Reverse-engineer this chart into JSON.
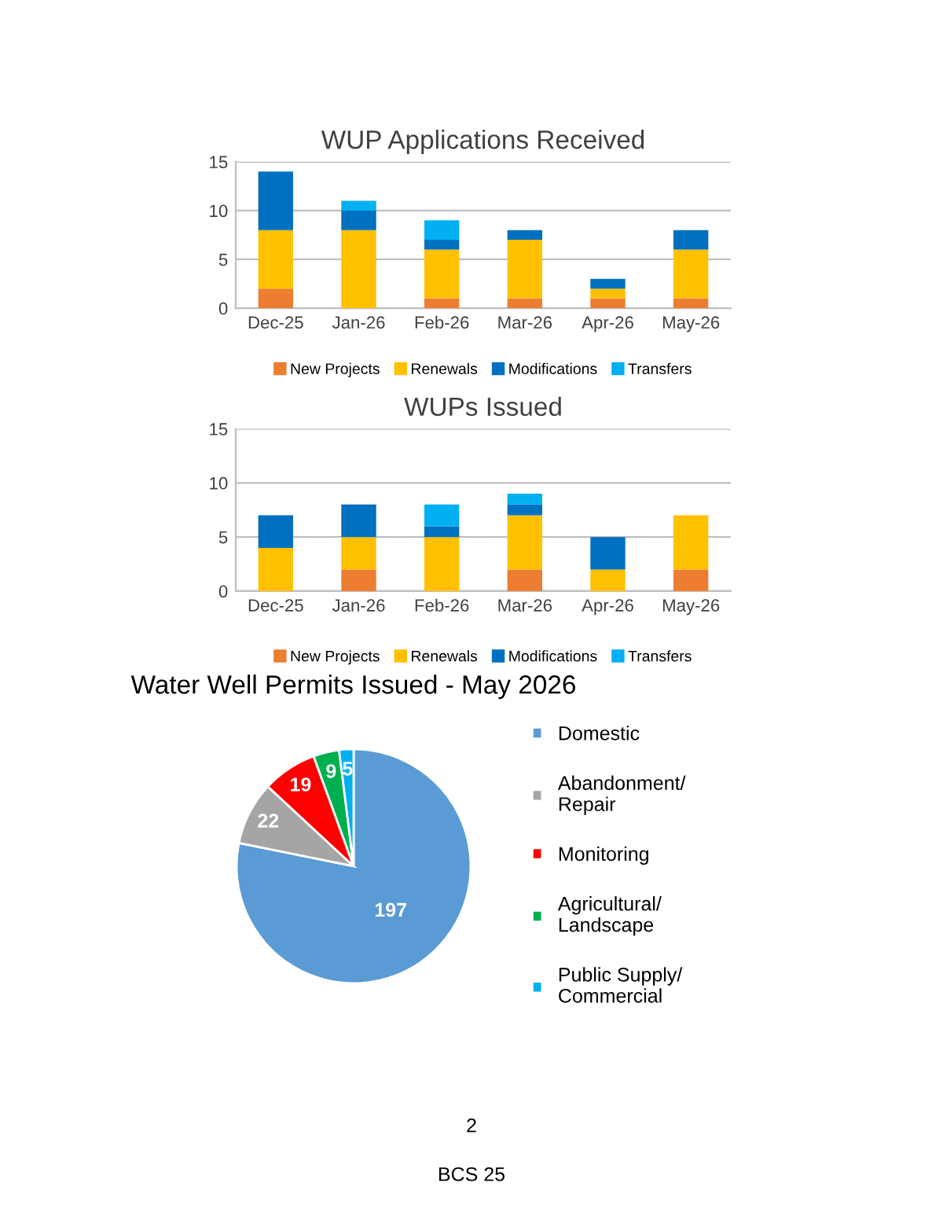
{
  "chart_data": [
    {
      "type": "bar",
      "title": "WUP Applications Received",
      "stacked": true,
      "categories": [
        "Dec-25",
        "Jan-26",
        "Feb-26",
        "Mar-26",
        "Apr-26",
        "May-26"
      ],
      "series": [
        {
          "name": "New Projects",
          "color": "#ed7d31",
          "values": [
            2,
            0,
            1,
            1,
            1,
            1
          ]
        },
        {
          "name": "Renewals",
          "color": "#ffc000",
          "values": [
            6,
            8,
            5,
            6,
            1,
            5
          ]
        },
        {
          "name": "Modifications",
          "color": "#0070c0",
          "values": [
            6,
            2,
            1,
            1,
            1,
            2
          ]
        },
        {
          "name": "Transfers",
          "color": "#00b0f0",
          "values": [
            0,
            1,
            2,
            0,
            0,
            0
          ]
        }
      ],
      "ylim": [
        0,
        15
      ],
      "yticks": [
        0,
        5,
        10,
        15
      ],
      "grid": "y",
      "legend": "bottom"
    },
    {
      "type": "bar",
      "title": "WUPs Issued",
      "stacked": true,
      "categories": [
        "Dec-25",
        "Jan-26",
        "Feb-26",
        "Mar-26",
        "Apr-26",
        "May-26"
      ],
      "series": [
        {
          "name": "New Projects",
          "color": "#ed7d31",
          "values": [
            0,
            2,
            0,
            2,
            0,
            2
          ]
        },
        {
          "name": "Renewals",
          "color": "#ffc000",
          "values": [
            4,
            3,
            5,
            5,
            2,
            5
          ]
        },
        {
          "name": "Modifications",
          "color": "#0070c0",
          "values": [
            3,
            3,
            1,
            1,
            3,
            0
          ]
        },
        {
          "name": "Transfers",
          "color": "#00b0f0",
          "values": [
            0,
            0,
            2,
            1,
            0,
            0
          ]
        }
      ],
      "ylim": [
        0,
        15
      ],
      "yticks": [
        0,
        5,
        10,
        15
      ],
      "grid": "y",
      "legend": "bottom"
    },
    {
      "type": "pie",
      "title": "Water Well Permits Issued - May 2026",
      "categories": [
        "Domestic",
        "Abandonment/\nRepair",
        "Monitoring",
        "Agricultural/\nLandscape",
        "Public Supply/\nCommercial"
      ],
      "values": [
        197,
        22,
        19,
        9,
        5
      ],
      "colors": [
        "#5b9bd5",
        "#a5a5a5",
        "#ff0000",
        "#00b050",
        "#00b0f0"
      ],
      "data_labels": true,
      "legend": "right",
      "annotations": [
        "2",
        "BCS 25"
      ]
    }
  ]
}
